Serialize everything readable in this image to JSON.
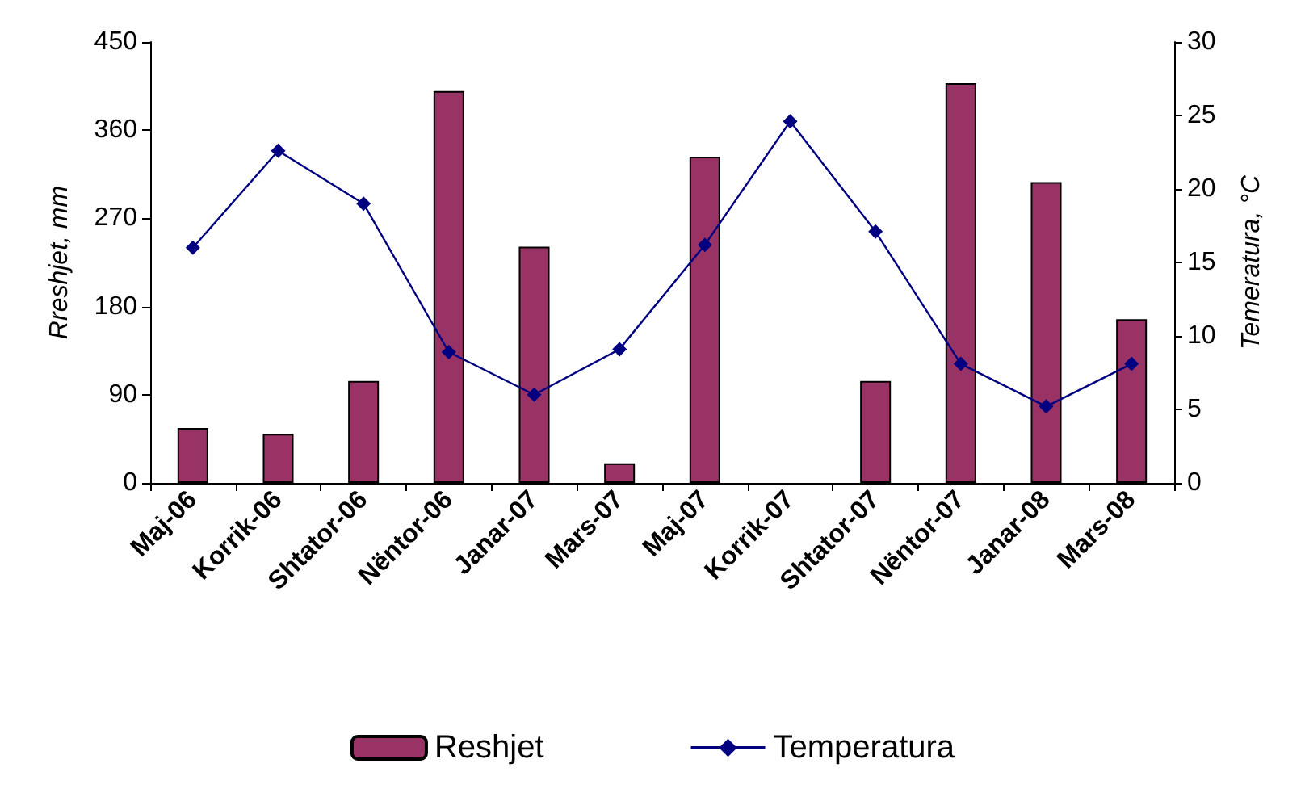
{
  "chart_data": {
    "type": "bar",
    "categories": [
      "Maj-06",
      "Korrik-06",
      "Shtator-06",
      "Nëntor-06",
      "Janar-07",
      "Mars-07",
      "Maj-07",
      "Korrik-07",
      "Shtator-07",
      "Nëntor-07",
      "Janar-08",
      "Mars-08"
    ],
    "ylabel": "Rreshjet, mm",
    "y2label": "Temeratura, °C",
    "series": [
      {
        "name": "Reshjet",
        "color": "#993366",
        "values": [
          56,
          50,
          104,
          400,
          241,
          20,
          333,
          0,
          104,
          408,
          307,
          167
        ]
      },
      {
        "name": "Temperatura",
        "type": "line",
        "axis": "y2",
        "color": "#000080",
        "marker": "diamond",
        "values": [
          16.0,
          22.6,
          19.0,
          8.9,
          6.0,
          9.1,
          16.2,
          24.6,
          17.1,
          8.1,
          5.2,
          8.1
        ]
      }
    ],
    "ylim": [
      0,
      450
    ],
    "yticks": [
      0,
      90,
      180,
      270,
      360,
      450
    ],
    "y2lim": [
      0,
      30
    ],
    "y2ticks": [
      0,
      5,
      10,
      15,
      20,
      25,
      30
    ],
    "grid": false,
    "legend": "bottom"
  }
}
